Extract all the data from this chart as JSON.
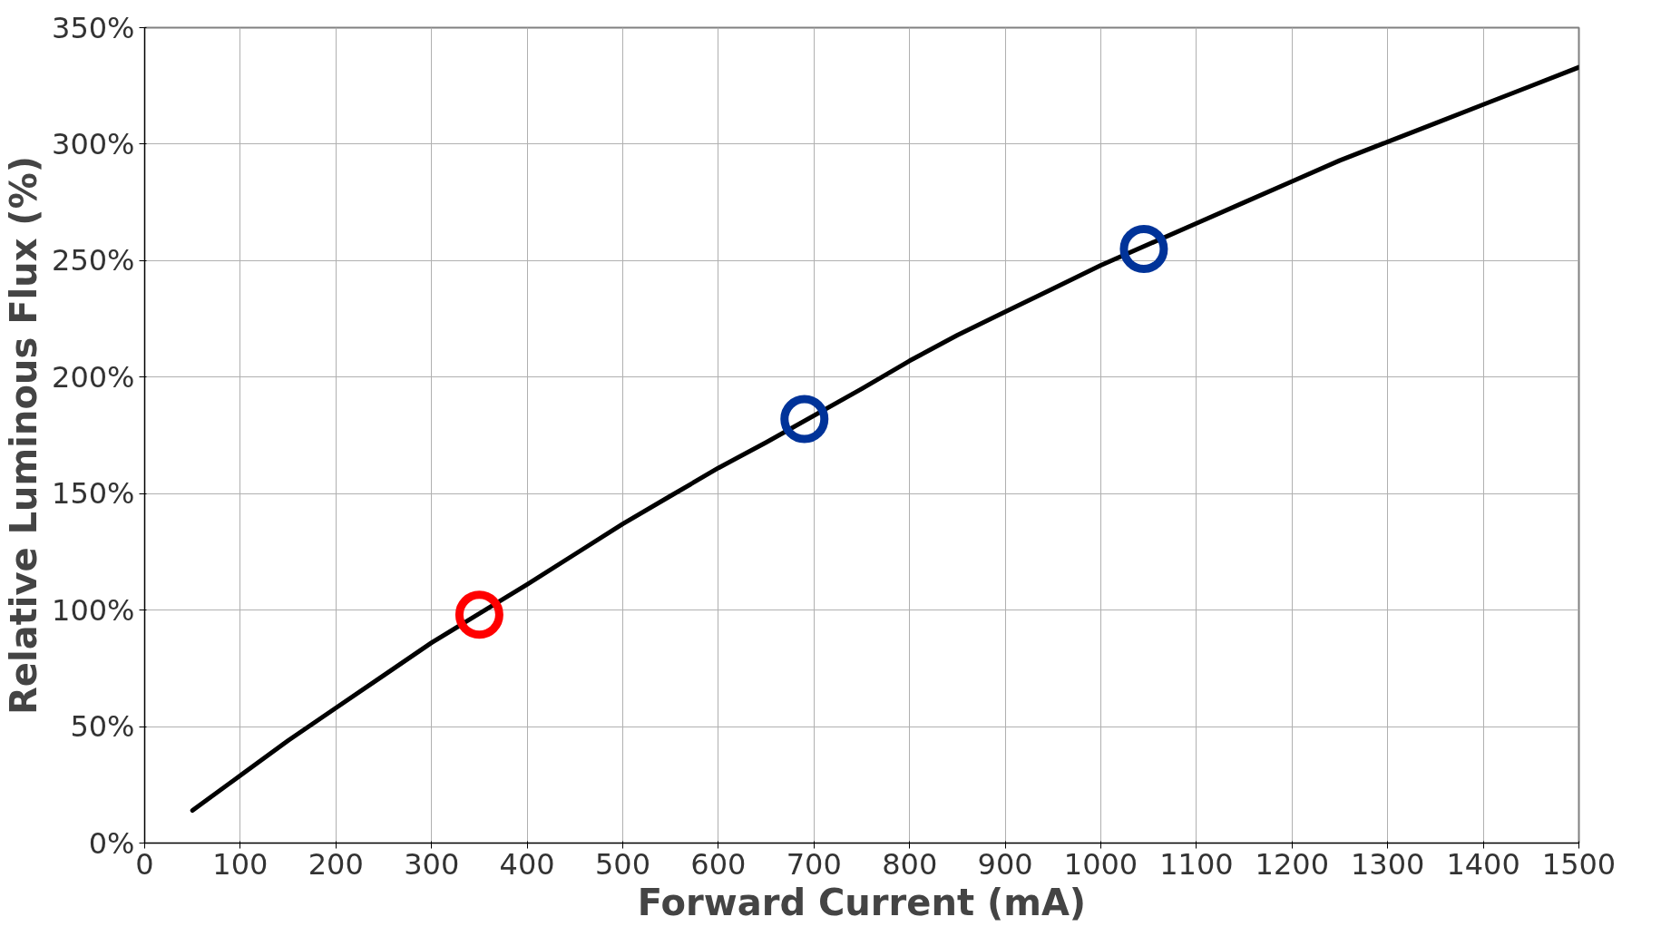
{
  "chart_data": {
    "type": "line",
    "xlabel": "Forward Current (mA)",
    "ylabel": "Relative Luminous Flux (%)",
    "xlim": [
      0,
      1500
    ],
    "xticks": [
      0,
      100,
      200,
      300,
      400,
      500,
      600,
      700,
      800,
      900,
      1000,
      1100,
      1200,
      1300,
      1400,
      1500
    ],
    "ylim": [
      0,
      350
    ],
    "yticks": [
      {
        "value": 0,
        "label": "0%"
      },
      {
        "value": 50,
        "label": "50%"
      },
      {
        "value": 100,
        "label": "100%"
      },
      {
        "value": 150,
        "label": "150%"
      },
      {
        "value": 200,
        "label": "200%"
      },
      {
        "value": 250,
        "label": "250%"
      },
      {
        "value": 300,
        "label": "300%"
      },
      {
        "value": 350,
        "label": "350%"
      }
    ],
    "grid": true,
    "series": [
      {
        "color": "#000000",
        "marker": "none",
        "line_style": "solid",
        "x": [
          50,
          100,
          150,
          200,
          250,
          300,
          400,
          450,
          500,
          550,
          600,
          650,
          750,
          800,
          850,
          900,
          950,
          1000,
          1100,
          1150,
          1200,
          1250,
          1300,
          1350,
          1400,
          1450,
          1500
        ],
        "values": [
          14,
          29,
          44,
          58,
          72,
          86,
          111,
          124,
          137,
          149,
          161,
          172,
          195,
          207,
          218,
          228,
          238,
          248,
          266,
          275,
          284,
          293,
          301,
          309,
          317,
          325,
          333
        ]
      },
      {
        "type": "scatter",
        "color": "#ff0000",
        "marker": "circle",
        "x": [
          350
        ],
        "values": [
          98
        ]
      },
      {
        "type": "scatter",
        "color": "#003399",
        "marker": "circle",
        "x": [
          690,
          1045
        ],
        "values": [
          182,
          255
        ]
      }
    ]
  }
}
